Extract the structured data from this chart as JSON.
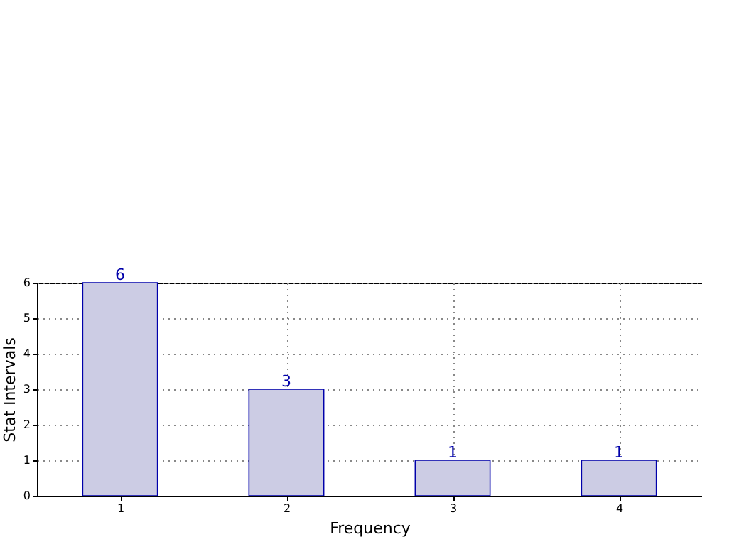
{
  "chart_data": {
    "type": "bar",
    "xlabel": "Frequency",
    "ylabel": "Stat Intervals",
    "x": [
      1,
      2,
      3,
      4
    ],
    "values": [
      6,
      3,
      1,
      1
    ],
    "color": "#ccccE4",
    "xlim": [
      0.5,
      4.5
    ],
    "xticks": [
      1,
      2,
      3,
      4
    ],
    "ylim": [
      0,
      6
    ],
    "yticks": [
      0,
      1,
      2,
      3,
      4,
      5,
      6
    ],
    "grid": true,
    "data_labels": true
  }
}
